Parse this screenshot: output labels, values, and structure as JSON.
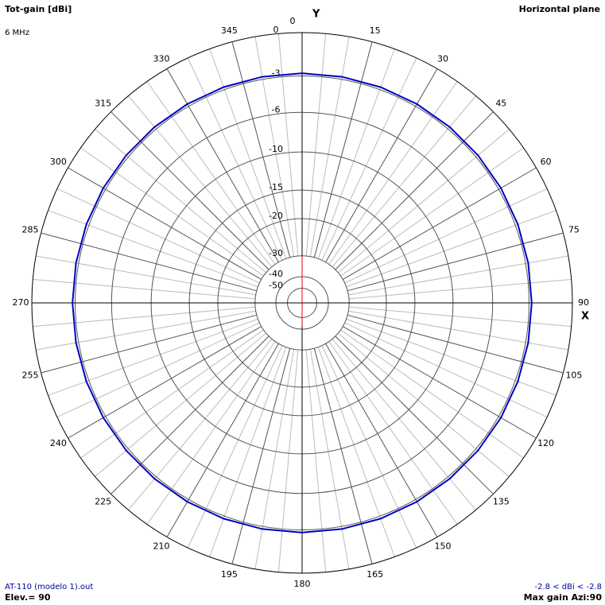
{
  "chart_data": {
    "type": "polar",
    "title": "Tot-gain [dBi]",
    "subtitle": "6 MHz",
    "plane": "Horizontal plane",
    "x_axis_label": "X",
    "y_axis_label": "Y",
    "xticks": [
      0,
      15,
      30,
      45,
      60,
      75,
      90,
      105,
      120,
      135,
      150,
      165,
      180,
      195,
      210,
      225,
      240,
      255,
      270,
      285,
      300,
      315,
      330,
      345
    ],
    "rticks": [
      0,
      -3,
      -6,
      -10,
      -15,
      -20,
      -30,
      -40,
      -50
    ],
    "rlim": [
      -50,
      0
    ],
    "series": [
      {
        "name": "AT-110 (modelo 1).out",
        "color": "#0000c0",
        "x": [
          0,
          10,
          20,
          30,
          40,
          50,
          60,
          70,
          80,
          90,
          100,
          110,
          120,
          130,
          140,
          150,
          160,
          170,
          180,
          190,
          200,
          210,
          220,
          230,
          240,
          250,
          260,
          270,
          280,
          290,
          300,
          310,
          320,
          330,
          340,
          350
        ],
        "values": [
          -2.8,
          -2.8,
          -2.8,
          -2.8,
          -2.8,
          -2.8,
          -2.8,
          -2.8,
          -2.8,
          -2.8,
          -2.8,
          -2.8,
          -2.8,
          -2.8,
          -2.8,
          -2.8,
          -2.8,
          -2.8,
          -2.8,
          -2.8,
          -2.8,
          -2.8,
          -2.8,
          -2.8,
          -2.8,
          -2.8,
          -2.8,
          -2.8,
          -2.8,
          -2.8,
          -2.8,
          -2.8,
          -2.8,
          -2.8,
          -2.8,
          -2.8
        ]
      }
    ],
    "range_note": "-2.8 < dBi < -2.8",
    "elevation_note": "Elev.= 90",
    "max_gain_note": "Max gain Azi:90"
  }
}
